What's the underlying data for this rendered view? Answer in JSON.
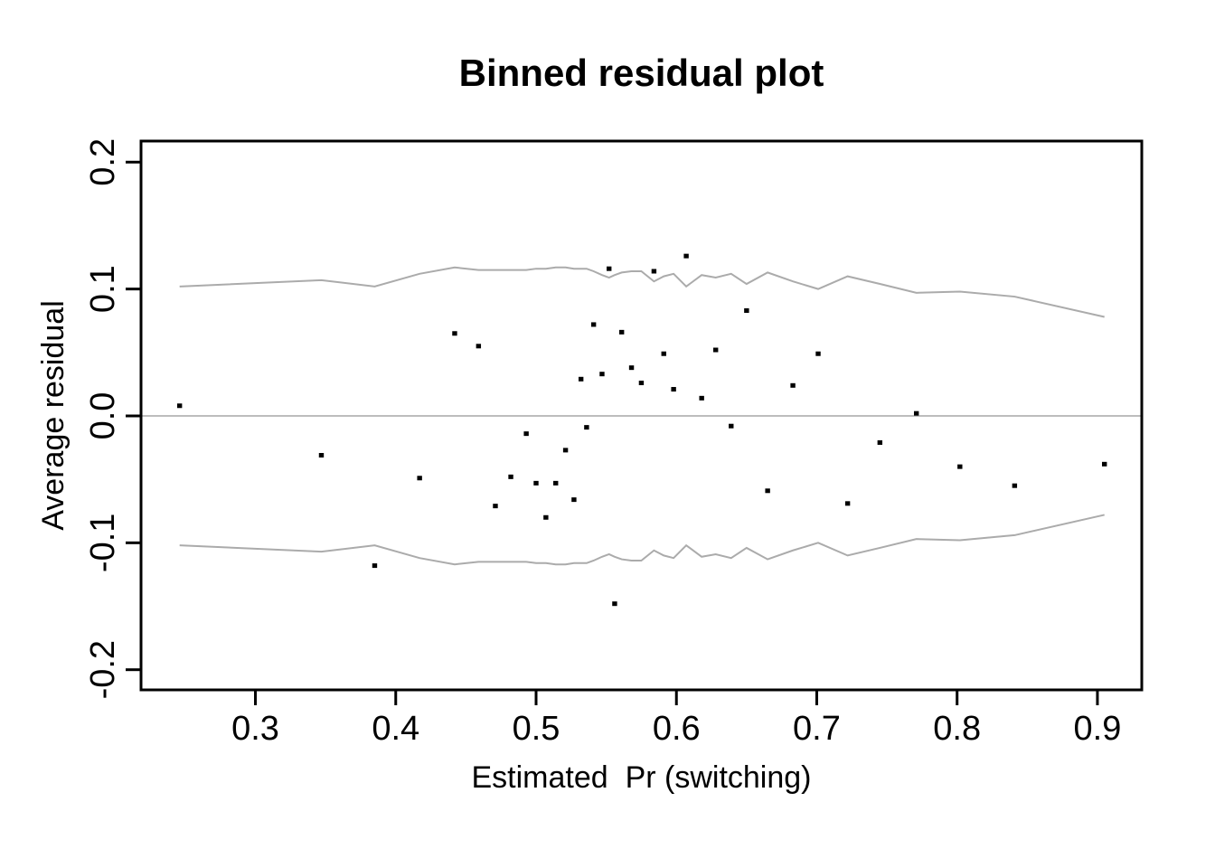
{
  "figure": {
    "title": "Binned residual plot",
    "xlabel": "Estimated  Pr (switching)",
    "ylabel": "Average residual"
  },
  "chart_data": {
    "type": "scatter",
    "title": "Binned residual plot",
    "xlabel": "Estimated  Pr (switching)",
    "ylabel": "Average residual",
    "xlim": [
      0.2185,
      0.9316
    ],
    "ylim": [
      -0.2159,
      0.2166
    ],
    "x_ticks": [
      0.3,
      0.4,
      0.5,
      0.6,
      0.7,
      0.8,
      0.9
    ],
    "y_ticks": [
      0.2,
      0.1,
      0.0,
      -0.1,
      -0.2
    ],
    "tick_decimals": 1,
    "grid": false,
    "legend": null,
    "zero_line_y": 0,
    "points": {
      "name": "binned average residuals",
      "x": [
        0.246,
        0.347,
        0.385,
        0.417,
        0.442,
        0.459,
        0.471,
        0.482,
        0.493,
        0.5,
        0.507,
        0.514,
        0.521,
        0.527,
        0.532,
        0.536,
        0.541,
        0.547,
        0.552,
        0.556,
        0.561,
        0.568,
        0.575,
        0.584,
        0.591,
        0.598,
        0.607,
        0.618,
        0.628,
        0.639,
        0.65,
        0.665,
        0.683,
        0.701,
        0.722,
        0.745,
        0.771,
        0.802,
        0.841,
        0.905
      ],
      "y": [
        0.008,
        -0.031,
        -0.118,
        -0.049,
        0.065,
        0.055,
        -0.071,
        -0.048,
        -0.014,
        -0.053,
        -0.08,
        -0.053,
        -0.027,
        -0.066,
        0.029,
        -0.009,
        0.072,
        0.033,
        0.116,
        -0.148,
        0.066,
        0.038,
        0.026,
        0.114,
        0.049,
        0.021,
        0.126,
        0.014,
        0.052,
        -0.008,
        0.083,
        -0.059,
        0.024,
        0.049,
        -0.069,
        -0.021,
        0.002,
        -0.04,
        -0.055,
        -0.038
      ]
    },
    "band": {
      "name": "plus/minus 2 SE band",
      "x": [
        0.246,
        0.347,
        0.385,
        0.417,
        0.442,
        0.459,
        0.471,
        0.482,
        0.493,
        0.5,
        0.507,
        0.514,
        0.521,
        0.527,
        0.532,
        0.536,
        0.541,
        0.547,
        0.552,
        0.556,
        0.561,
        0.568,
        0.575,
        0.584,
        0.591,
        0.598,
        0.607,
        0.618,
        0.628,
        0.639,
        0.65,
        0.665,
        0.683,
        0.701,
        0.722,
        0.745,
        0.771,
        0.802,
        0.841,
        0.905
      ],
      "upper": [
        0.102,
        0.107,
        0.102,
        0.112,
        0.117,
        0.115,
        0.115,
        0.115,
        0.115,
        0.116,
        0.116,
        0.117,
        0.117,
        0.116,
        0.116,
        0.116,
        0.114,
        0.111,
        0.109,
        0.111,
        0.113,
        0.114,
        0.114,
        0.106,
        0.11,
        0.112,
        0.102,
        0.111,
        0.109,
        0.112,
        0.104,
        0.113,
        0.106,
        0.1,
        0.11,
        0.104,
        0.097,
        0.098,
        0.094,
        0.078
      ],
      "lower": [
        -0.102,
        -0.107,
        -0.102,
        -0.112,
        -0.117,
        -0.115,
        -0.115,
        -0.115,
        -0.115,
        -0.116,
        -0.116,
        -0.117,
        -0.117,
        -0.116,
        -0.116,
        -0.116,
        -0.114,
        -0.111,
        -0.109,
        -0.111,
        -0.113,
        -0.114,
        -0.114,
        -0.106,
        -0.11,
        -0.112,
        -0.102,
        -0.111,
        -0.109,
        -0.112,
        -0.104,
        -0.113,
        -0.106,
        -0.1,
        -0.11,
        -0.104,
        -0.097,
        -0.098,
        -0.094,
        -0.078
      ]
    },
    "colors": {
      "points": "#000000",
      "band": "#ababab",
      "zero_line": "#bdbdbd",
      "axis": "#000000"
    }
  }
}
